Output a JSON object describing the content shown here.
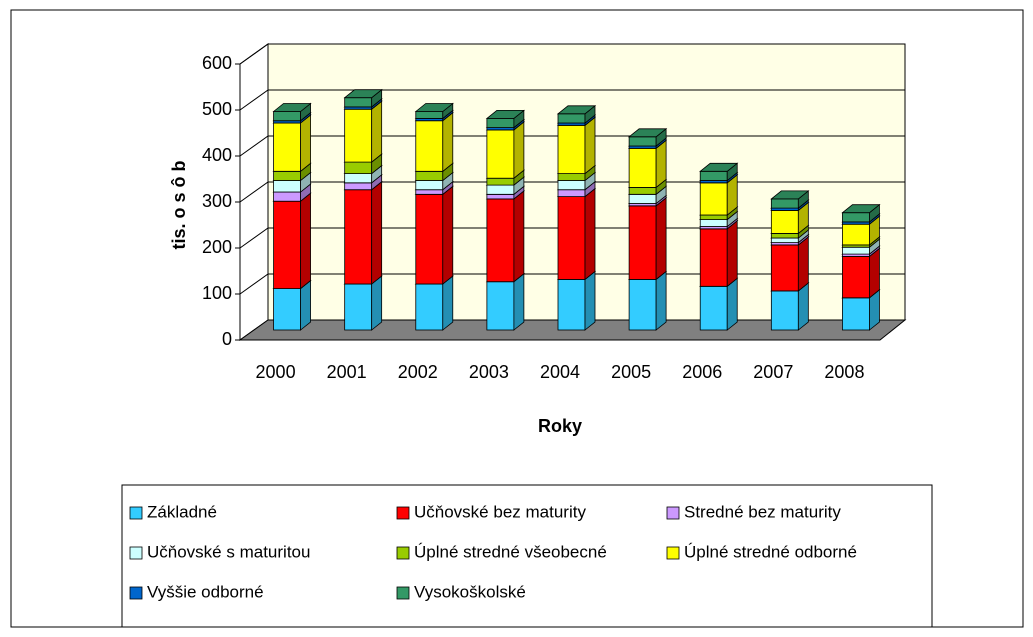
{
  "chart_data": {
    "type": "bar3d_stacked",
    "y_label": "tis. o s ô b",
    "x_label": "Roky",
    "categories": [
      "2000",
      "2001",
      "2002",
      "2003",
      "2004",
      "2005",
      "2006",
      "2007",
      "2008"
    ],
    "series": [
      {
        "name": "Základné",
        "color": "#33ccff",
        "values": [
          90,
          100,
          100,
          105,
          110,
          110,
          95,
          85,
          70
        ]
      },
      {
        "name": "Učňovské bez maturity",
        "color": "#ff0000",
        "values": [
          190,
          205,
          195,
          180,
          180,
          160,
          125,
          100,
          90
        ]
      },
      {
        "name": "Stredné bez maturity",
        "color": "#cc99ff",
        "values": [
          20,
          15,
          10,
          10,
          15,
          5,
          5,
          5,
          5
        ]
      },
      {
        "name": "Učňovské s maturitou",
        "color": "#ccffff",
        "values": [
          25,
          20,
          20,
          20,
          20,
          20,
          15,
          10,
          15
        ]
      },
      {
        "name": "Úplné stredné všeobecné",
        "color": "#99cc00",
        "values": [
          20,
          25,
          20,
          15,
          15,
          15,
          10,
          10,
          5
        ]
      },
      {
        "name": "Úplné stredné odborné",
        "color": "#ffff00",
        "values": [
          105,
          115,
          110,
          105,
          105,
          85,
          70,
          50,
          45
        ]
      },
      {
        "name": "Vyššie odborné",
        "color": "#0066cc",
        "values": [
          5,
          5,
          5,
          5,
          5,
          5,
          5,
          5,
          5
        ]
      },
      {
        "name": "Vysokoškolské",
        "color": "#339966",
        "values": [
          20,
          20,
          15,
          20,
          20,
          20,
          20,
          20,
          20
        ]
      }
    ],
    "ylim": [
      0,
      600
    ],
    "yticks": [
      0,
      100,
      200,
      300,
      400,
      500,
      600
    ],
    "grid": true
  }
}
